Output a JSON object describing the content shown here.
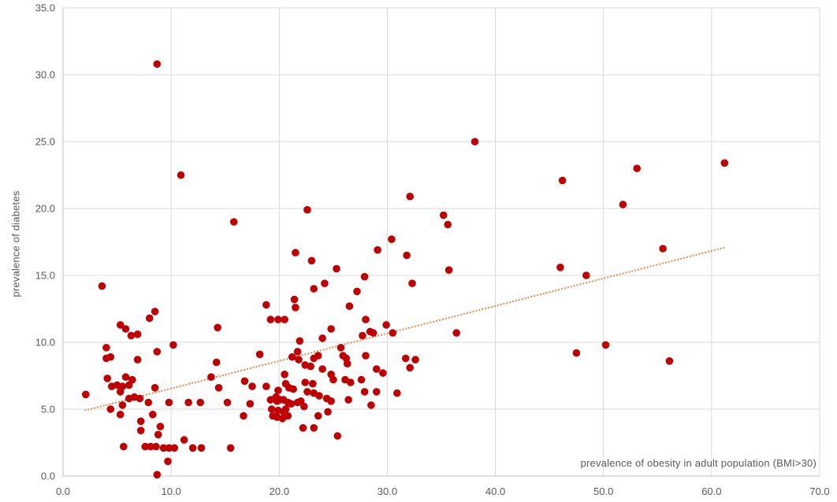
{
  "chart_data": {
    "type": "scatter",
    "title": "",
    "xlabel": "prevalence of obesity in adult population (BMI>30)",
    "ylabel": "prevalence of diabetes",
    "xlim": [
      0,
      70
    ],
    "ylim": [
      0,
      35
    ],
    "grid": true,
    "legend": "none",
    "x_ticks": [
      {
        "v": 0,
        "label": "0.0"
      },
      {
        "v": 10,
        "label": "10.0"
      },
      {
        "v": 20,
        "label": "20.0"
      },
      {
        "v": 30,
        "label": "30.0"
      },
      {
        "v": 40,
        "label": "40.0"
      },
      {
        "v": 50,
        "label": "50.0"
      },
      {
        "v": 60,
        "label": "60.0"
      },
      {
        "v": 70,
        "label": "70.0"
      }
    ],
    "y_ticks": [
      {
        "v": 0,
        "label": "0.0"
      },
      {
        "v": 5,
        "label": "5.0"
      },
      {
        "v": 10,
        "label": "10.0"
      },
      {
        "v": 15,
        "label": "15.0"
      },
      {
        "v": 20,
        "label": "20.0"
      },
      {
        "v": 25,
        "label": "25.0"
      },
      {
        "v": 30,
        "label": "30.0"
      },
      {
        "v": 35,
        "label": "35.0"
      }
    ],
    "marker": {
      "shape": "circle",
      "radius": 4.8,
      "color": "#c00000"
    },
    "trendline": {
      "style": "dotted",
      "color": "#ed7d31",
      "x1": 2.0,
      "y1": 4.9,
      "x2": 61.3,
      "y2": 17.1
    },
    "colors": {
      "grid": "#d9d9d9",
      "axis": "#bfbfbf",
      "tick_text": "#595959",
      "background": "#ffffff"
    },
    "points": [
      [
        2.1,
        6.1
      ],
      [
        3.6,
        14.2
      ],
      [
        4,
        9.6
      ],
      [
        4,
        8.8
      ],
      [
        4.4,
        8.9
      ],
      [
        4.1,
        7.3
      ],
      [
        4.5,
        6.7
      ],
      [
        5,
        6.8
      ],
      [
        5.5,
        6.7
      ],
      [
        5.3,
        6.3
      ],
      [
        6.1,
        6.8
      ],
      [
        5.8,
        7.4
      ],
      [
        6.4,
        7.2
      ],
      [
        4.4,
        5
      ],
      [
        5.5,
        5.3
      ],
      [
        5.3,
        4.6
      ],
      [
        5.3,
        11.3
      ],
      [
        5.8,
        11
      ],
      [
        6.3,
        10.5
      ],
      [
        6.9,
        10.6
      ],
      [
        8,
        11.8
      ],
      [
        8.5,
        12.3
      ],
      [
        6.1,
        5.8
      ],
      [
        6.6,
        5.9
      ],
      [
        7.1,
        5.8
      ],
      [
        7.9,
        5.5
      ],
      [
        6.9,
        8.7
      ],
      [
        7.2,
        4.1
      ],
      [
        7.2,
        3.4
      ],
      [
        8.3,
        4.6
      ],
      [
        9,
        3.7
      ],
      [
        8.8,
        3.1
      ],
      [
        8.5,
        6.6
      ],
      [
        8.7,
        9.3
      ],
      [
        8.7,
        30.8
      ],
      [
        5.6,
        2.2
      ],
      [
        7.6,
        2.2
      ],
      [
        8.1,
        2.2
      ],
      [
        8.6,
        2.2
      ],
      [
        9.3,
        2.1
      ],
      [
        9.8,
        2.1
      ],
      [
        10.3,
        2.1
      ],
      [
        9.7,
        1.1
      ],
      [
        8.7,
        0.1
      ],
      [
        9.8,
        5.5
      ],
      [
        10.2,
        9.8
      ],
      [
        10.9,
        22.5
      ],
      [
        11.2,
        2.7
      ],
      [
        12,
        2.1
      ],
      [
        12.8,
        2.1
      ],
      [
        15.5,
        2.1
      ],
      [
        11.6,
        5.5
      ],
      [
        12.7,
        5.5
      ],
      [
        13.7,
        7.4
      ],
      [
        14.2,
        8.5
      ],
      [
        14.3,
        11.1
      ],
      [
        14.4,
        6.6
      ],
      [
        15.2,
        5.5
      ],
      [
        15.8,
        19
      ],
      [
        16.7,
        4.5
      ],
      [
        16.8,
        7.1
      ],
      [
        17.5,
        6.7
      ],
      [
        17.3,
        5.4
      ],
      [
        18.2,
        9.1
      ],
      [
        18.8,
        6.7
      ],
      [
        18.8,
        12.8
      ],
      [
        19.2,
        11.7
      ],
      [
        19.9,
        11.7
      ],
      [
        20.5,
        11.7
      ],
      [
        19.2,
        5.7
      ],
      [
        19.7,
        5.9
      ],
      [
        19.3,
        5
      ],
      [
        19.9,
        4.9
      ],
      [
        20.4,
        4.8
      ],
      [
        20.6,
        5
      ],
      [
        19.4,
        4.5
      ],
      [
        19.8,
        4.4
      ],
      [
        20.3,
        4.3
      ],
      [
        20.8,
        4.5
      ],
      [
        19.8,
        5.6
      ],
      [
        20.1,
        5.7
      ],
      [
        20.4,
        5.7
      ],
      [
        20.8,
        5.5
      ],
      [
        21.1,
        5.4
      ],
      [
        21.7,
        5.5
      ],
      [
        22,
        5.6
      ],
      [
        19.9,
        6.4
      ],
      [
        20.6,
        6.9
      ],
      [
        20.9,
        6.6
      ],
      [
        21.3,
        6.5
      ],
      [
        20.5,
        7.6
      ],
      [
        21.2,
        8.9
      ],
      [
        21.8,
        8.7
      ],
      [
        21.7,
        9.3
      ],
      [
        21.9,
        10.1
      ],
      [
        21.4,
        13.2
      ],
      [
        21.5,
        12.6
      ],
      [
        21.5,
        16.7
      ],
      [
        22.2,
        3.6
      ],
      [
        23.2,
        3.6
      ],
      [
        22.3,
        5.2
      ],
      [
        22.6,
        6.3
      ],
      [
        23.2,
        6.2
      ],
      [
        22.4,
        7
      ],
      [
        23.1,
        6.9
      ],
      [
        22.4,
        8.3
      ],
      [
        22.9,
        8.2
      ],
      [
        23.6,
        9
      ],
      [
        23.2,
        8.8
      ],
      [
        22.6,
        19.9
      ],
      [
        23,
        16.1
      ],
      [
        23.2,
        14
      ],
      [
        23.6,
        4.5
      ],
      [
        23.7,
        6
      ],
      [
        24,
        10.3
      ],
      [
        24,
        8
      ],
      [
        24.8,
        7.6
      ],
      [
        25,
        7.2
      ],
      [
        24.2,
        14.4
      ],
      [
        24.8,
        11
      ],
      [
        24.4,
        5.8
      ],
      [
        24.8,
        5.6
      ],
      [
        24.5,
        4.8
      ],
      [
        25.3,
        15.5
      ],
      [
        25.4,
        3
      ],
      [
        25.7,
        9.6
      ],
      [
        25.9,
        9
      ],
      [
        26.2,
        8.8
      ],
      [
        26.3,
        8.4
      ],
      [
        26.1,
        7.2
      ],
      [
        26.6,
        7
      ],
      [
        26.4,
        5.7
      ],
      [
        26.5,
        12.7
      ],
      [
        27.2,
        13.8
      ],
      [
        27.6,
        7.2
      ],
      [
        27.7,
        10.5
      ],
      [
        27.9,
        14.9
      ],
      [
        27.9,
        6.3
      ],
      [
        28,
        11.7
      ],
      [
        28,
        9
      ],
      [
        28.4,
        10.8
      ],
      [
        28.7,
        10.7
      ],
      [
        28.5,
        5.3
      ],
      [
        29,
        8
      ],
      [
        29.6,
        7.7
      ],
      [
        29,
        6.3
      ],
      [
        29.1,
        16.9
      ],
      [
        29.9,
        11.3
      ],
      [
        30.4,
        17.7
      ],
      [
        30.5,
        10.7
      ],
      [
        30.9,
        6.2
      ],
      [
        31.7,
        8.8
      ],
      [
        32.6,
        8.7
      ],
      [
        32.1,
        8.1
      ],
      [
        31.8,
        16.5
      ],
      [
        32.1,
        20.9
      ],
      [
        32.3,
        14.4
      ],
      [
        35.2,
        19.5
      ],
      [
        35.6,
        18.8
      ],
      [
        35.7,
        15.4
      ],
      [
        36.4,
        10.7
      ],
      [
        38.1,
        25
      ],
      [
        46,
        15.6
      ],
      [
        48.4,
        15
      ],
      [
        46.2,
        22.1
      ],
      [
        47.5,
        9.2
      ],
      [
        50.2,
        9.8
      ],
      [
        51.8,
        20.3
      ],
      [
        53.1,
        23
      ],
      [
        55.5,
        17
      ],
      [
        56.1,
        8.6
      ],
      [
        61.2,
        23.4
      ]
    ]
  }
}
